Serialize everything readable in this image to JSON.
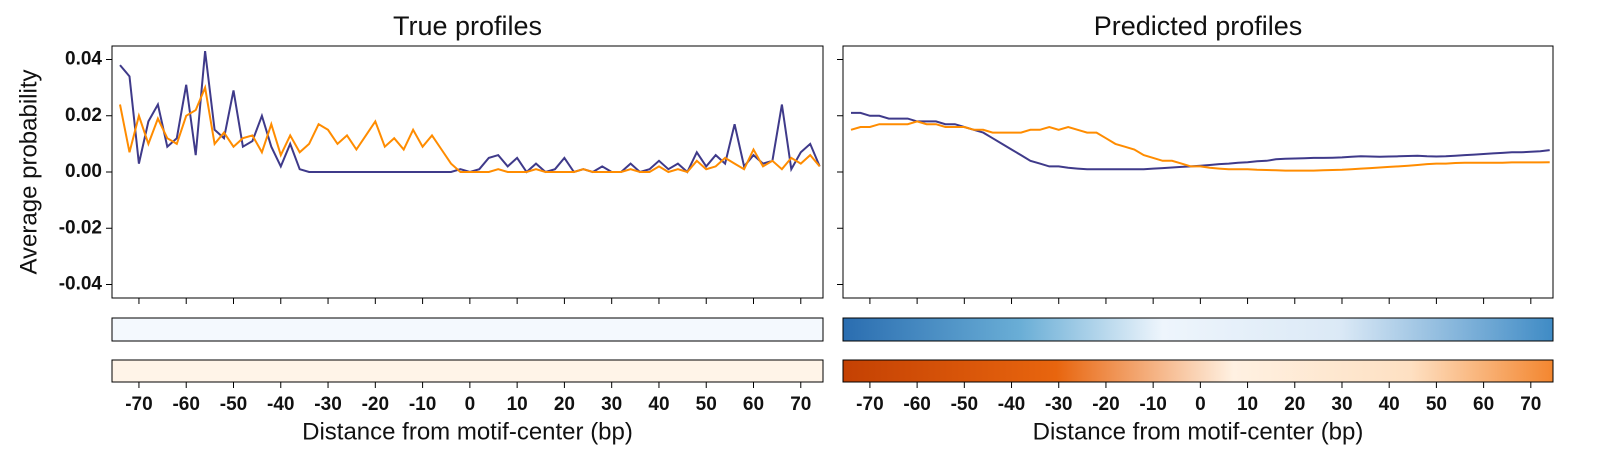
{
  "chart_data": [
    {
      "type": "line",
      "title": "True profiles",
      "xlabel": "Distance from motif-center (bp)",
      "ylabel": "Average probability",
      "x": [
        -74,
        -72,
        -70,
        -68,
        -66,
        -64,
        -62,
        -60,
        -58,
        -56,
        -54,
        -52,
        -50,
        -48,
        -46,
        -44,
        -42,
        -40,
        -38,
        -36,
        -34,
        -32,
        -30,
        -28,
        -26,
        -24,
        -22,
        -20,
        -18,
        -16,
        -14,
        -12,
        -10,
        -8,
        -6,
        -4,
        -2,
        0,
        2,
        4,
        6,
        8,
        10,
        12,
        14,
        16,
        18,
        20,
        22,
        24,
        26,
        28,
        30,
        32,
        34,
        36,
        38,
        40,
        42,
        44,
        46,
        48,
        50,
        52,
        54,
        56,
        58,
        60,
        62,
        64,
        66,
        68,
        70,
        72,
        74
      ],
      "series": [
        {
          "color": "#3f3a8a",
          "values": [
            0.038,
            0.034,
            0.003,
            0.018,
            0.024,
            0.009,
            0.012,
            0.031,
            0.006,
            0.043,
            0.015,
            0.012,
            0.029,
            0.009,
            0.011,
            0.02,
            0.009,
            0.002,
            0.01,
            0.001,
            0,
            0,
            0,
            0,
            0,
            0,
            0,
            0,
            0,
            0,
            0,
            0,
            0,
            0,
            0,
            0,
            0.001,
            0,
            0.001,
            0.005,
            0.006,
            0.002,
            0.005,
            0,
            0.003,
            0,
            0.001,
            0.005,
            0,
            0.001,
            0,
            0.002,
            0,
            0,
            0.003,
            0,
            0.001,
            0.004,
            0.001,
            0.003,
            0,
            0.007,
            0.002,
            0.006,
            0.003,
            0.017,
            0.002,
            0.006,
            0.003,
            0.004,
            0.024,
            0.001,
            0.007,
            0.01,
            0.002
          ]
        },
        {
          "color": "#ff8c00",
          "values": [
            0.024,
            0.007,
            0.02,
            0.01,
            0.019,
            0.012,
            0.01,
            0.02,
            0.022,
            0.03,
            0.01,
            0.014,
            0.009,
            0.012,
            0.013,
            0.007,
            0.017,
            0.006,
            0.013,
            0.007,
            0.01,
            0.017,
            0.015,
            0.01,
            0.013,
            0.008,
            0.013,
            0.018,
            0.009,
            0.012,
            0.008,
            0.015,
            0.009,
            0.013,
            0.008,
            0.003,
            0,
            0,
            0,
            0,
            0.001,
            0,
            0,
            0,
            0.001,
            0,
            0,
            0,
            0,
            0.001,
            0,
            0,
            0,
            0,
            0.001,
            0,
            0,
            0.002,
            0,
            0.001,
            0,
            0.004,
            0.001,
            0.002,
            0.005,
            0.003,
            0.001,
            0.008,
            0.002,
            0.004,
            0.001,
            0.005,
            0.003,
            0.006,
            0.002
          ]
        }
      ],
      "xlim": [
        -75.7,
        74.7
      ],
      "xticks": [
        -70,
        -60,
        -50,
        -40,
        -30,
        -20,
        -10,
        0,
        10,
        20,
        30,
        40,
        50,
        60,
        70
      ],
      "ylim": [
        -0.0448,
        0.0448
      ],
      "yticks": [
        -0.04,
        -0.02,
        {
          "value": 0,
          "label": "0.00"
        },
        0.02,
        0.04
      ]
    },
    {
      "type": "line",
      "title": "Predicted profiles",
      "xlabel": "Distance from motif-center (bp)",
      "x": [
        -74,
        -72,
        -70,
        -68,
        -66,
        -64,
        -62,
        -60,
        -58,
        -56,
        -54,
        -52,
        -50,
        -48,
        -46,
        -44,
        -42,
        -40,
        -38,
        -36,
        -34,
        -32,
        -30,
        -28,
        -26,
        -24,
        -22,
        -20,
        -18,
        -16,
        -14,
        -12,
        -10,
        -8,
        -6,
        -4,
        -2,
        0,
        2,
        4,
        6,
        8,
        10,
        12,
        14,
        16,
        18,
        20,
        22,
        24,
        26,
        28,
        30,
        32,
        34,
        36,
        38,
        40,
        42,
        44,
        46,
        48,
        50,
        52,
        54,
        56,
        58,
        60,
        62,
        64,
        66,
        68,
        70,
        72,
        74
      ],
      "series": [
        {
          "color": "#3f3a8a",
          "values": [
            0.021,
            0.021,
            0.02,
            0.02,
            0.019,
            0.019,
            0.019,
            0.018,
            0.018,
            0.018,
            0.017,
            0.017,
            0.016,
            0.015,
            0.014,
            0.012,
            0.01,
            0.008,
            0.006,
            0.004,
            0.003,
            0.002,
            0.002,
            0.0015,
            0.0012,
            0.001,
            0.001,
            0.001,
            0.001,
            0.001,
            0.001,
            0.001,
            0.0012,
            0.0014,
            0.0016,
            0.0018,
            0.002,
            0.0022,
            0.0025,
            0.0028,
            0.003,
            0.0033,
            0.0035,
            0.0038,
            0.004,
            0.0045,
            0.0047,
            0.0048,
            0.0049,
            0.005,
            0.005,
            0.0051,
            0.0052,
            0.0054,
            0.0056,
            0.0055,
            0.0054,
            0.0055,
            0.0056,
            0.0057,
            0.0058,
            0.0056,
            0.0055,
            0.0056,
            0.0058,
            0.006,
            0.0062,
            0.0064,
            0.0066,
            0.0068,
            0.007,
            0.007,
            0.0072,
            0.0074,
            0.0078
          ]
        },
        {
          "color": "#ff8c00",
          "values": [
            0.015,
            0.016,
            0.016,
            0.017,
            0.017,
            0.017,
            0.017,
            0.018,
            0.017,
            0.017,
            0.016,
            0.016,
            0.016,
            0.015,
            0.015,
            0.014,
            0.014,
            0.014,
            0.014,
            0.015,
            0.015,
            0.016,
            0.015,
            0.016,
            0.015,
            0.014,
            0.014,
            0.012,
            0.01,
            0.009,
            0.008,
            0.006,
            0.005,
            0.004,
            0.004,
            0.003,
            0.002,
            0.002,
            0.0015,
            0.0012,
            0.001,
            0.001,
            0.001,
            0.0008,
            0.0007,
            0.0006,
            0.0005,
            0.0005,
            0.0005,
            0.0005,
            0.0006,
            0.0007,
            0.0008,
            0.001,
            0.0012,
            0.0014,
            0.0016,
            0.0018,
            0.002,
            0.0022,
            0.0025,
            0.0028,
            0.003,
            0.003,
            0.0032,
            0.0033,
            0.0033,
            0.0033,
            0.0033,
            0.0033,
            0.0034,
            0.0034,
            0.0034,
            0.0034,
            0.0035
          ]
        }
      ],
      "xlim": [
        -75.7,
        74.7
      ],
      "xticks": [
        -70,
        -60,
        -50,
        -40,
        -30,
        -20,
        -10,
        0,
        10,
        20,
        30,
        40,
        50,
        60,
        70
      ],
      "ylim": [
        -0.0448,
        0.0448
      ],
      "yticks": [
        -0.04,
        -0.02,
        0,
        0.02,
        0.04
      ]
    }
  ]
}
